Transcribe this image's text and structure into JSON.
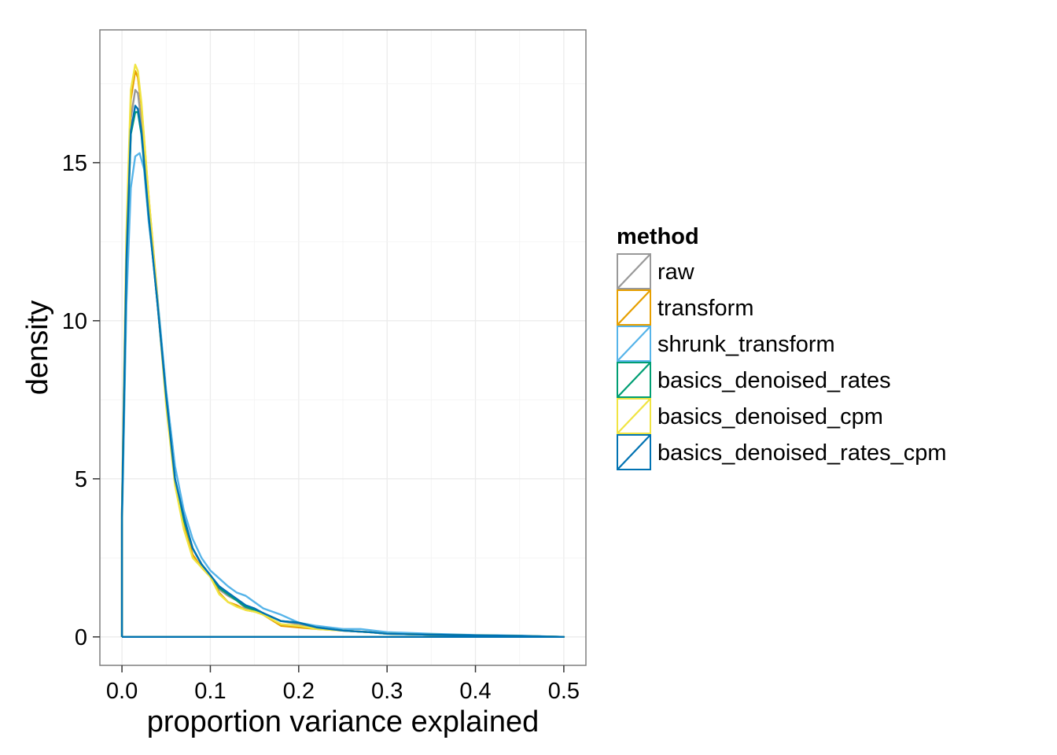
{
  "chart_data": {
    "type": "line",
    "title": "",
    "xlabel": "proportion variance explained",
    "ylabel": "density",
    "xlim": [
      -0.025,
      0.525
    ],
    "ylim": [
      -0.9,
      19.2
    ],
    "x_ticks": [
      0.0,
      0.1,
      0.2,
      0.3,
      0.4,
      0.5
    ],
    "x_tick_labels": [
      "0.0",
      "0.1",
      "0.2",
      "0.3",
      "0.4",
      "0.5"
    ],
    "y_ticks": [
      0,
      5,
      10,
      15
    ],
    "y_tick_labels": [
      "0",
      "5",
      "10",
      "15"
    ],
    "grid": true,
    "legend": {
      "title": "method",
      "placement": "right"
    },
    "series": [
      {
        "name": "raw",
        "color": "#999999",
        "x": [
          0,
          0,
          0.005,
          0.01,
          0.015,
          0.018,
          0.022,
          0.03,
          0.04,
          0.05,
          0.06,
          0.07,
          0.08,
          0.09,
          0.1,
          0.11,
          0.12,
          0.13,
          0.14,
          0.15,
          0.16,
          0.18,
          0.2,
          0.22,
          0.25,
          0.28,
          0.3,
          0.35,
          0.4,
          0.45,
          0.5
        ],
        "y": [
          0,
          4.0,
          12.0,
          16.4,
          17.3,
          17.2,
          16.3,
          13.6,
          10.6,
          7.5,
          5.0,
          3.7,
          2.8,
          2.3,
          1.95,
          1.5,
          1.3,
          1.15,
          0.9,
          0.8,
          0.75,
          0.5,
          0.4,
          0.3,
          0.2,
          0.15,
          0.1,
          0.07,
          0.05,
          0.03,
          0.0
        ]
      },
      {
        "name": "transform",
        "color": "#E69F00",
        "x": [
          0,
          0,
          0.005,
          0.01,
          0.015,
          0.018,
          0.022,
          0.03,
          0.04,
          0.05,
          0.06,
          0.07,
          0.08,
          0.09,
          0.1,
          0.11,
          0.12,
          0.13,
          0.14,
          0.15,
          0.16,
          0.18,
          0.2,
          0.22,
          0.25,
          0.28,
          0.3,
          0.35,
          0.4,
          0.45,
          0.5
        ],
        "y": [
          0,
          4.0,
          12.5,
          17.0,
          17.9,
          17.7,
          16.8,
          14.0,
          10.8,
          7.4,
          4.9,
          3.5,
          2.6,
          2.2,
          1.9,
          1.4,
          1.1,
          1.0,
          0.85,
          0.8,
          0.7,
          0.35,
          0.3,
          0.25,
          0.2,
          0.15,
          0.1,
          0.07,
          0.05,
          0.03,
          0.0
        ]
      },
      {
        "name": "shrunk_transform",
        "color": "#56B4E9",
        "x": [
          0,
          0,
          0.005,
          0.01,
          0.015,
          0.02,
          0.025,
          0.03,
          0.04,
          0.05,
          0.06,
          0.07,
          0.08,
          0.09,
          0.1,
          0.11,
          0.12,
          0.13,
          0.14,
          0.15,
          0.16,
          0.18,
          0.2,
          0.22,
          0.25,
          0.27,
          0.3,
          0.35,
          0.4,
          0.45,
          0.5
        ],
        "y": [
          0,
          3.5,
          10.5,
          14.2,
          15.2,
          15.3,
          14.8,
          13.2,
          10.8,
          7.8,
          5.4,
          4.0,
          3.1,
          2.5,
          2.1,
          1.85,
          1.6,
          1.4,
          1.3,
          1.1,
          0.9,
          0.7,
          0.45,
          0.35,
          0.25,
          0.25,
          0.15,
          0.1,
          0.06,
          0.04,
          0.0
        ]
      },
      {
        "name": "basics_denoised_rates",
        "color": "#009E73",
        "x": [
          0,
          0,
          0.005,
          0.01,
          0.015,
          0.018,
          0.022,
          0.03,
          0.04,
          0.05,
          0.06,
          0.07,
          0.08,
          0.09,
          0.1,
          0.11,
          0.12,
          0.13,
          0.14,
          0.15,
          0.16,
          0.18,
          0.2,
          0.22,
          0.25,
          0.28,
          0.3,
          0.35,
          0.4,
          0.45,
          0.5
        ],
        "y": [
          0,
          3.8,
          11.8,
          15.9,
          16.6,
          16.6,
          15.9,
          13.4,
          10.6,
          7.6,
          5.0,
          3.7,
          2.8,
          2.3,
          1.95,
          1.55,
          1.35,
          1.15,
          0.95,
          0.85,
          0.75,
          0.5,
          0.45,
          0.3,
          0.2,
          0.15,
          0.1,
          0.07,
          0.05,
          0.03,
          0.0
        ]
      },
      {
        "name": "basics_denoised_cpm",
        "color": "#F0E442",
        "x": [
          0,
          0,
          0.005,
          0.01,
          0.015,
          0.018,
          0.022,
          0.03,
          0.04,
          0.05,
          0.06,
          0.07,
          0.08,
          0.09,
          0.1,
          0.11,
          0.12,
          0.13,
          0.14,
          0.15,
          0.16,
          0.18,
          0.2,
          0.22,
          0.25,
          0.28,
          0.3,
          0.35,
          0.4,
          0.45,
          0.5
        ],
        "y": [
          0,
          4.1,
          12.8,
          17.3,
          18.1,
          17.9,
          16.9,
          14.0,
          10.7,
          7.3,
          4.8,
          3.4,
          2.5,
          2.2,
          1.9,
          1.35,
          1.1,
          0.95,
          0.85,
          0.8,
          0.7,
          0.4,
          0.35,
          0.25,
          0.2,
          0.15,
          0.1,
          0.07,
          0.05,
          0.03,
          0.0
        ]
      },
      {
        "name": "basics_denoised_rates_cpm",
        "color": "#0072B2",
        "x": [
          0,
          0,
          0.005,
          0.01,
          0.015,
          0.018,
          0.022,
          0.03,
          0.04,
          0.05,
          0.06,
          0.07,
          0.08,
          0.09,
          0.1,
          0.11,
          0.12,
          0.13,
          0.14,
          0.15,
          0.16,
          0.18,
          0.2,
          0.22,
          0.25,
          0.28,
          0.3,
          0.35,
          0.4,
          0.45,
          0.5
        ],
        "y": [
          0,
          3.9,
          11.9,
          16.0,
          16.8,
          16.7,
          16.0,
          13.4,
          10.6,
          7.6,
          5.0,
          3.8,
          2.8,
          2.3,
          1.95,
          1.6,
          1.4,
          1.2,
          1.0,
          0.9,
          0.75,
          0.5,
          0.45,
          0.3,
          0.2,
          0.15,
          0.1,
          0.07,
          0.05,
          0.03,
          0.0
        ]
      }
    ]
  }
}
